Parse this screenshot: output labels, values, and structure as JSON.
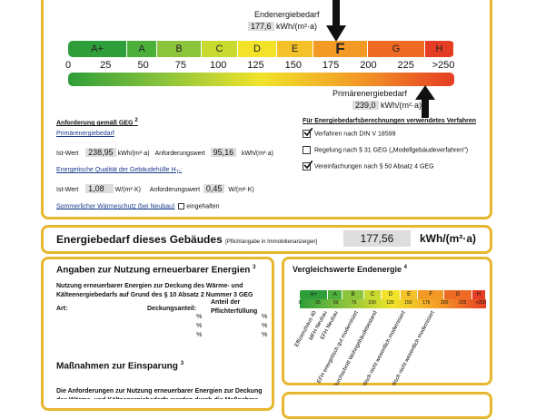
{
  "energy_scale": {
    "end_energy": {
      "label": "Endenergiebedarf",
      "value": "177,6",
      "unit": "kWh/(m²·a)"
    },
    "classes": [
      "A+",
      "A",
      "B",
      "C",
      "D",
      "E",
      "F",
      "G",
      "H"
    ],
    "ticks": [
      "0",
      "25",
      "50",
      "75",
      "100",
      "125",
      "150",
      "175",
      "200",
      "225",
      ">250"
    ],
    "primary_energy": {
      "label": "Primärenergiebedarf",
      "value": "239,0",
      "unit": "kWh/(m²·a)"
    }
  },
  "requirements": {
    "title": "Anforderung gemäß GEG",
    "title_sup": "2",
    "primary_heading": "Primärenergiebedarf",
    "primary_row": {
      "actual_label": "Ist-Wert",
      "actual": "238,95",
      "actual_unit": "kWh/(m²·a)",
      "req_label": "Anforderungswert",
      "req": "95,16",
      "req_unit": "kWh/(m²·a)"
    },
    "envelope_heading": "Energetische Qualität der Gebäudehülle H",
    "envelope_sub": "T'",
    "envelope_end": ":",
    "envelope_row": {
      "actual_label": "Ist-Wert",
      "actual": "1,08",
      "actual_unit": "W/(m²·K)",
      "req_label": "Anforderungswert",
      "req": "0,45",
      "req_unit": "W/(m²·K)"
    },
    "summer": "Sommerlicher Wärmeschutz (bei Neubau)",
    "summer_option": "eingehalten"
  },
  "method": {
    "title": "Für Energiebedarfsberechnungen verwendetes Verfahren",
    "options": [
      {
        "label": "Verfahren nach DIN V 18599",
        "checked": true
      },
      {
        "label": "Regelung nach § 31 GEG („Modellgebäudeverfahren\")",
        "checked": false
      },
      {
        "label": "Vereinfachungen nach § 50 Absatz 4 GEG",
        "checked": true
      }
    ]
  },
  "demand": {
    "title": "Energiebedarf dieses Gebäudes",
    "note": "[Pflichtangabe in Immobilienanzeigen]",
    "value": "177,56",
    "unit": "kWh/(m²·a)"
  },
  "renewables": {
    "title": "Angaben zur Nutzung erneuerbarer Energien",
    "title_sup": "3",
    "text": "Nutzung erneuerbarer Energien zur Deckung des Wärme- und Kälteenergiebedarfs auf Grund des § 10 Absatz 2 Nummer 3 GEG",
    "columns": [
      "Art:",
      "Deckungsanteil:",
      "Anteil der Pflichterfüllung"
    ],
    "percent_rows": [
      [
        "%",
        "%"
      ],
      [
        "%",
        "%"
      ],
      [
        "%",
        "%"
      ]
    ]
  },
  "savings": {
    "title": "Maßnahmen zur Einsparung",
    "title_sup": "3",
    "text": "Die Anforderungen zur Nutzung erneuerbarer Energien zur Deckung des Wärme- und Kälteenergiebedarfs werden durch die Maßnahme"
  },
  "comparison": {
    "title": "Vergleichswerte Endenergie",
    "title_sup": "4",
    "classes": [
      "A+",
      "A",
      "B",
      "C",
      "D",
      "E",
      "F",
      "G",
      "H"
    ],
    "ticks": [
      "0",
      "25",
      "50",
      "75",
      "100",
      "125",
      "150",
      "175",
      "200",
      "225",
      ">250"
    ],
    "references": [
      "Effizienzhaus 40",
      "MFH Neubau",
      "EFH Neubau",
      "EFH energetisch gut modernisiert",
      "Durchschnitt Wohngebäudebestand",
      "MFH energetisch nicht wesentlich modernisiert",
      "EFH energetisch nicht wesentlich modernisiert"
    ]
  }
}
